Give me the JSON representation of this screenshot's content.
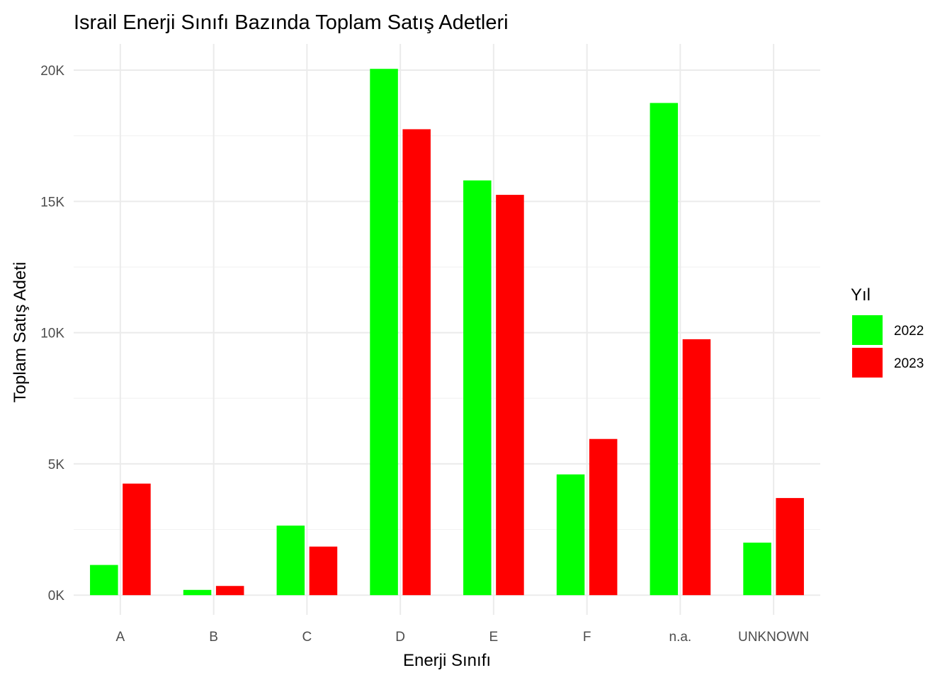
{
  "chart_data": {
    "type": "bar",
    "title": "Israil Enerji Sınıfı Bazında Toplam Satış Adetleri",
    "xlabel": "Enerji Sınıfı",
    "ylabel": "Toplam Satış Adeti",
    "categories": [
      "A",
      "B",
      "C",
      "D",
      "E",
      "F",
      "n.a.",
      "UNKNOWN"
    ],
    "series": [
      {
        "name": "2022",
        "color": "#00ff00",
        "values": [
          1150,
          200,
          2650,
          20050,
          15800,
          4600,
          18750,
          2000
        ]
      },
      {
        "name": "2023",
        "color": "#ff0000",
        "values": [
          4250,
          350,
          1850,
          17750,
          15250,
          5950,
          9750,
          3700
        ]
      }
    ],
    "ylim": [
      -750,
      21000
    ],
    "yticks": [
      0,
      5000,
      10000,
      15000,
      20000
    ],
    "ytick_labels": [
      "0K",
      "5K",
      "10K",
      "15K",
      "20K"
    ],
    "grid": true,
    "legend": {
      "title": "Yıl",
      "position": "right"
    }
  }
}
